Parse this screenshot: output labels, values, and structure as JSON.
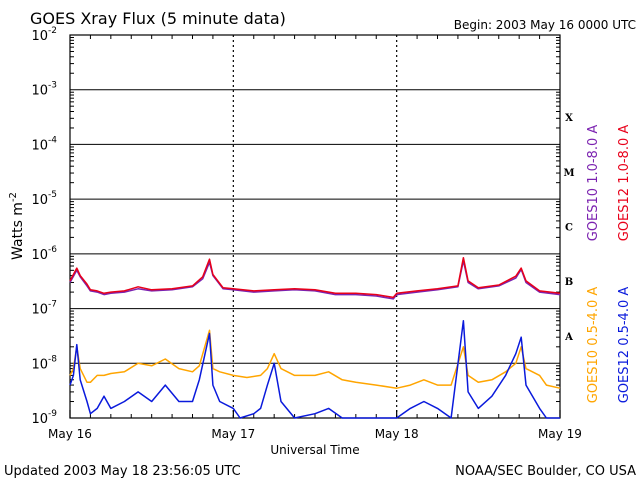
{
  "header": {
    "title": "GOES Xray Flux (5 minute data)",
    "begin_label": "Begin:  2003 May 16 0000 UTC"
  },
  "footer": {
    "updated": "Updated 2003 May 18 23:56:05 UTC",
    "credit": "NOAA/SEC Boulder, CO USA"
  },
  "chart_data": {
    "type": "line",
    "title": "GOES Xray Flux (5 minute data)",
    "xlabel": "Universal Time",
    "ylabel": "Watts m",
    "ylabel_exponent": "-2",
    "y_scale": "log",
    "ylim": [
      "1e-9",
      "1e-2"
    ],
    "xlim": [
      "2003-05-16 00:00",
      "2003-05-19 00:00"
    ],
    "x_ticks": [
      "May 16",
      "May 17",
      "May 18",
      "May 19"
    ],
    "y_ticks": [
      {
        "base": "10",
        "exp": "-2"
      },
      {
        "base": "10",
        "exp": "-3"
      },
      {
        "base": "10",
        "exp": "-4"
      },
      {
        "base": "10",
        "exp": "-5"
      },
      {
        "base": "10",
        "exp": "-6"
      },
      {
        "base": "10",
        "exp": "-7"
      },
      {
        "base": "10",
        "exp": "-8"
      },
      {
        "base": "10",
        "exp": "-9"
      }
    ],
    "flare_classes": [
      {
        "label": "X",
        "exp": -3.5
      },
      {
        "label": "M",
        "exp": -4.5
      },
      {
        "label": "C",
        "exp": -5.5
      },
      {
        "label": "B",
        "exp": -6.5
      },
      {
        "label": "A",
        "exp": -7.5
      }
    ],
    "grid_lines_exp": [
      -3,
      -4,
      -5,
      -6,
      -7,
      -8
    ],
    "colors": {
      "goes10_long": "#7b22b0",
      "goes12_long": "#e8001a",
      "goes10_short": "#ffa500",
      "goes12_short": "#0a1adc"
    },
    "series": [
      {
        "name": "GOES10 1.0-8.0 A",
        "color_key": "goes10_long",
        "legend_group": "long",
        "x": [
          0,
          1,
          1.5,
          2.5,
          3,
          4,
          5,
          6,
          8,
          10,
          12,
          15,
          18,
          19.5,
          20.5,
          21,
          22.5,
          24,
          27,
          30,
          33,
          36,
          39,
          42,
          45,
          47.5,
          48,
          51,
          54,
          57,
          57.8,
          58.5,
          60,
          63,
          65.5,
          66.3,
          67,
          69,
          72
        ],
        "y": [
          "3.0e-7",
          "5.0e-7",
          "3.8e-7",
          "2.6e-7",
          "2.1e-7",
          "2.0e-7",
          "1.8e-7",
          "1.9e-7",
          "2.0e-7",
          "2.3e-7",
          "2.1e-7",
          "2.2e-7",
          "2.5e-7",
          "3.5e-7",
          "7.0e-7",
          "4.0e-7",
          "2.3e-7",
          "2.2e-7",
          "2.0e-7",
          "2.1e-7",
          "2.2e-7",
          "2.1e-7",
          "1.8e-7",
          "1.8e-7",
          "1.7e-7",
          "1.5e-7",
          "1.8e-7",
          "2.0e-7",
          "2.2e-7",
          "2.5e-7",
          "7.5e-7",
          "3.0e-7",
          "2.3e-7",
          "2.6e-7",
          "3.6e-7",
          "5.2e-7",
          "3.0e-7",
          "2.0e-7",
          "1.8e-7"
        ]
      },
      {
        "name": "GOES12 1.0-8.0 A",
        "color_key": "goes12_long",
        "legend_group": "long",
        "x": [
          0,
          1,
          1.5,
          2.5,
          3,
          4,
          5,
          6,
          8,
          10,
          12,
          15,
          18,
          19.5,
          20.5,
          21,
          22.5,
          24,
          27,
          30,
          33,
          36,
          39,
          42,
          45,
          47.5,
          48,
          51,
          54,
          57,
          57.8,
          58.5,
          60,
          63,
          65.5,
          66.3,
          67,
          69,
          72
        ],
        "y": [
          "3.2e-7",
          "5.5e-7",
          "4.0e-7",
          "2.8e-7",
          "2.2e-7",
          "2.1e-7",
          "1.9e-7",
          "2.0e-7",
          "2.1e-7",
          "2.5e-7",
          "2.2e-7",
          "2.3e-7",
          "2.6e-7",
          "3.8e-7",
          "8.0e-7",
          "4.2e-7",
          "2.4e-7",
          "2.3e-7",
          "2.1e-7",
          "2.2e-7",
          "2.3e-7",
          "2.2e-7",
          "1.9e-7",
          "1.9e-7",
          "1.8e-7",
          "1.6e-7",
          "1.9e-7",
          "2.1e-7",
          "2.3e-7",
          "2.6e-7",
          "8.5e-7",
          "3.2e-7",
          "2.4e-7",
          "2.7e-7",
          "3.9e-7",
          "5.5e-7",
          "3.2e-7",
          "2.1e-7",
          "1.9e-7"
        ]
      },
      {
        "name": "GOES10 0.5-4.0 A",
        "color_key": "goes10_short",
        "legend_group": "short",
        "x": [
          0,
          0.5,
          1,
          1.5,
          2.5,
          3,
          4,
          5,
          6,
          8,
          10,
          12,
          14,
          16,
          18,
          19,
          20.5,
          21,
          22,
          24,
          26,
          28,
          29,
          30,
          31,
          33,
          36,
          38,
          40,
          42,
          45,
          48,
          50,
          52,
          54,
          56,
          57.8,
          58.5,
          60,
          62,
          64,
          65.5,
          66.3,
          67,
          69,
          70,
          72
        ],
        "y": [
          "6.0e-9",
          "8.0e-9",
          "2.0e-8",
          "8.0e-9",
          "4.5e-9",
          "4.5e-9",
          "6.0e-9",
          "6.0e-9",
          "6.5e-9",
          "7.0e-9",
          "1.0e-8",
          "9.0e-9",
          "1.2e-8",
          "8.0e-9",
          "7.0e-9",
          "9.0e-9",
          "4.0e-8",
          "8.0e-9",
          "7.0e-9",
          "6.0e-9",
          "5.5e-9",
          "6.0e-9",
          "8.0e-9",
          "1.5e-8",
          "8.0e-9",
          "6.0e-9",
          "6.0e-9",
          "7.0e-9",
          "5.0e-9",
          "4.5e-9",
          "4.0e-9",
          "3.5e-9",
          "4.0e-9",
          "5.0e-9",
          "4.0e-9",
          "4.0e-9",
          "2.0e-8",
          "6.0e-9",
          "4.5e-9",
          "5.0e-9",
          "7.0e-9",
          "1.0e-8",
          "2.0e-8",
          "8.0e-9",
          "6.0e-9",
          "4.0e-9",
          "3.5e-9"
        ]
      },
      {
        "name": "GOES12 0.5-4.0 A",
        "color_key": "goes12_short",
        "legend_group": "short",
        "x": [
          0,
          0.5,
          1,
          1.5,
          2.5,
          3,
          4,
          5,
          6,
          8,
          10,
          12,
          14,
          16,
          18,
          19,
          20.5,
          21,
          22,
          24,
          25,
          27,
          28,
          29,
          30,
          31,
          33,
          36,
          38,
          40,
          42,
          45,
          48,
          50,
          52,
          54,
          56,
          57.8,
          58.5,
          60,
          62,
          64,
          65.5,
          66.3,
          67,
          69,
          70,
          72
        ],
        "y": [
          "4.0e-9",
          "6.0e-9",
          "2.2e-8",
          "5.0e-9",
          "2.0e-9",
          "1.2e-9",
          "1.5e-9",
          "2.5e-9",
          "1.5e-9",
          "2.0e-9",
          "3.0e-9",
          "2.0e-9",
          "4.0e-9",
          "2.0e-9",
          "2.0e-9",
          "5.0e-9",
          "3.5e-8",
          "4.0e-9",
          "2.0e-9",
          "1.5e-9",
          "1.0e-9",
          "1.2e-9",
          "1.5e-9",
          "4.0e-9",
          "1.0e-8",
          "2.0e-9",
          "1.0e-9",
          "1.2e-9",
          "1.5e-9",
          "1.0e-9",
          "1.0e-9",
          "1.0e-9",
          "1.0e-9",
          "1.5e-9",
          "2.0e-9",
          "1.5e-9",
          "1.0e-9",
          "6.0e-8",
          "3.0e-9",
          "1.5e-9",
          "2.5e-9",
          "6.0e-9",
          "1.5e-8",
          "3.0e-8",
          "4.0e-9",
          "1.5e-9",
          "1.0e-9",
          "1.0e-9"
        ]
      }
    ]
  }
}
